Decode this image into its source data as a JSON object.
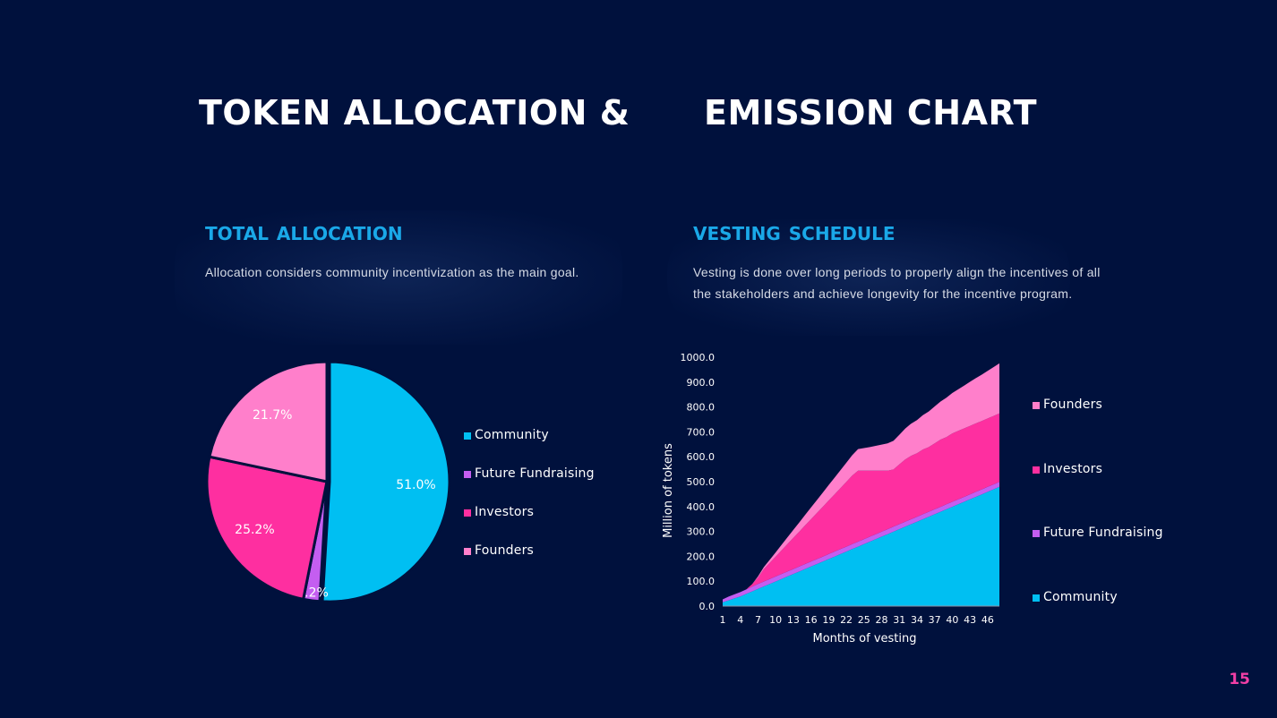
{
  "slide": {
    "title_left": "TOKEN ALLOCATION &",
    "title_right": "EMISSION CHART",
    "page_number": "15"
  },
  "allocation": {
    "heading": "TOTAL ALLOCATION",
    "description": "Allocation considers community incentivization as the main goal."
  },
  "vesting": {
    "heading": "VESTING SCHEDULE",
    "description": "Vesting is done over long periods to properly align the incentives of all the stakeholders and achieve longevity for the incentive program."
  },
  "chart_data": [
    {
      "type": "pie",
      "categories": [
        "Community",
        "Future Fundraising",
        "Investors",
        "Founders"
      ],
      "values": [
        51.0,
        2.2,
        25.2,
        21.7
      ],
      "data_labels": [
        "51.0%",
        "2.2%",
        "25.2%",
        "21.7%"
      ],
      "colors": [
        "#00bff2",
        "#c45ef0",
        "#fe2fa0",
        "#ff7fcb"
      ],
      "legend_position": "right"
    },
    {
      "type": "area",
      "stacked": true,
      "xlabel": "Months of vesting",
      "ylabel": "Million of tokens",
      "x": [
        1,
        2,
        3,
        4,
        5,
        6,
        7,
        8,
        9,
        10,
        11,
        12,
        13,
        14,
        15,
        16,
        17,
        18,
        19,
        20,
        21,
        22,
        23,
        24,
        25,
        26,
        27,
        28,
        29,
        30,
        31,
        32,
        33,
        34,
        35,
        36,
        37,
        38,
        39,
        40,
        41,
        42,
        43,
        44,
        45,
        46,
        47,
        48
      ],
      "x_tick_labels": [
        "1",
        "4",
        "7",
        "10",
        "13",
        "16",
        "19",
        "22",
        "25",
        "28",
        "31",
        "34",
        "37",
        "40",
        "43",
        "46"
      ],
      "ylim": [
        0,
        1000
      ],
      "y_tick_labels": [
        "0.0",
        "100.0",
        "200.0",
        "300.0",
        "400.0",
        "500.0",
        "600.0",
        "700.0",
        "800.0",
        "900.0",
        "1000.0"
      ],
      "grid": false,
      "legend_position": "right",
      "series": [
        {
          "name": "Community",
          "color": "#00bff2",
          "values": [
            15,
            23,
            31,
            39,
            49,
            59,
            69,
            79,
            89,
            99,
            109,
            119,
            129,
            139,
            149,
            159,
            169,
            179,
            189,
            199,
            209,
            219,
            229,
            239,
            249,
            259,
            269,
            279,
            289,
            299,
            309,
            319,
            329,
            339,
            349,
            359,
            369,
            379,
            389,
            399,
            409,
            419,
            429,
            439,
            449,
            459,
            469,
            479
          ]
        },
        {
          "name": "Future Fundraising",
          "color": "#c45ef0",
          "values": [
            12,
            15,
            16,
            17,
            18,
            19,
            20,
            20,
            20,
            20,
            20,
            20,
            20,
            20,
            20,
            20,
            20,
            20,
            20,
            20,
            20,
            20,
            20,
            20,
            20,
            20,
            20,
            20,
            20,
            20,
            20,
            20,
            20,
            20,
            20,
            20,
            20,
            20,
            20,
            20,
            20,
            20,
            20,
            20,
            20,
            20,
            20,
            20
          ]
        },
        {
          "name": "Investors",
          "color": "#fe2fa0",
          "values": [
            0,
            0,
            0,
            0,
            0,
            10,
            25,
            50,
            65,
            80,
            95,
            110,
            125,
            140,
            155,
            170,
            185,
            200,
            215,
            230,
            245,
            260,
            275,
            285,
            275,
            265,
            255,
            245,
            235,
            230,
            240,
            250,
            255,
            255,
            260,
            260,
            265,
            270,
            270,
            275,
            275,
            275,
            275,
            275,
            275,
            275,
            275,
            275
          ]
        },
        {
          "name": "Founders",
          "color": "#ff7fcb",
          "values": [
            0,
            0,
            0,
            0,
            0,
            0,
            5,
            8,
            12,
            17,
            22,
            27,
            32,
            37,
            42,
            47,
            52,
            57,
            62,
            67,
            72,
            77,
            82,
            87,
            91,
            95,
            100,
            105,
            110,
            115,
            119,
            124,
            129,
            133,
            138,
            143,
            148,
            153,
            158,
            162,
            167,
            172,
            177,
            182,
            186,
            191,
            196,
            201
          ]
        }
      ]
    }
  ]
}
